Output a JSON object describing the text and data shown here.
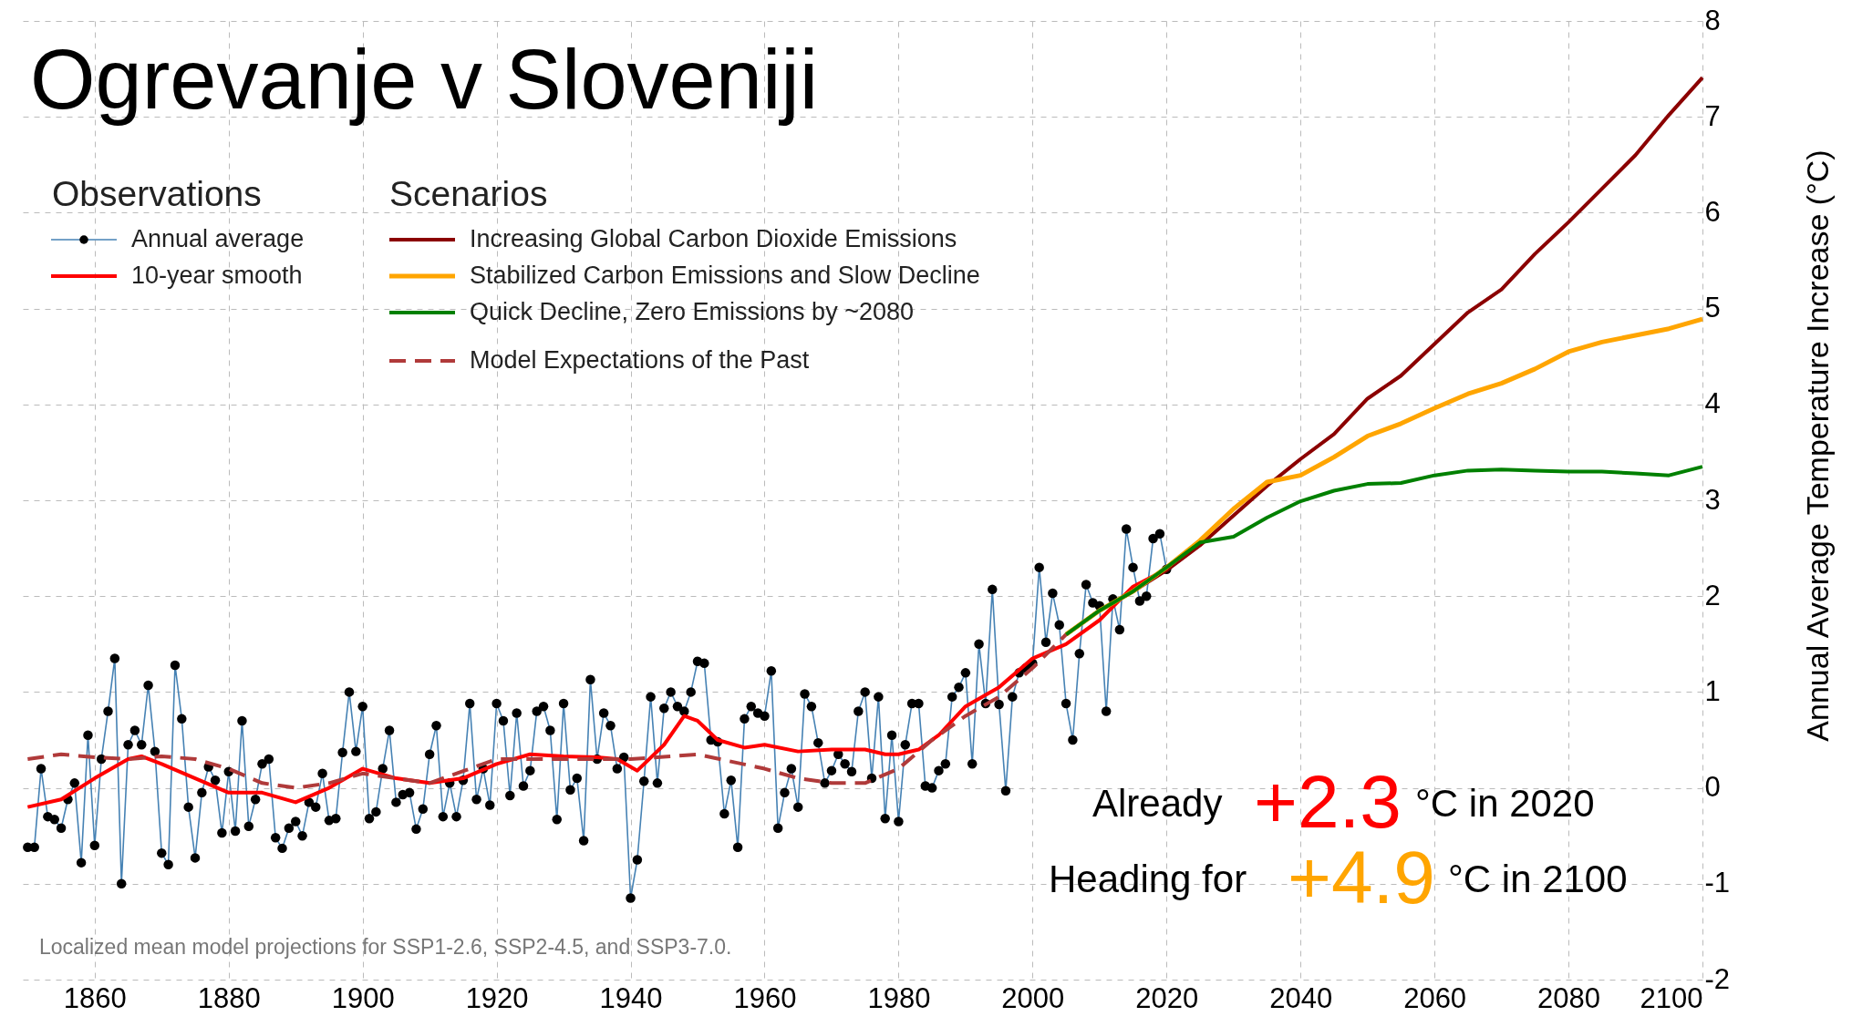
{
  "chart_data": {
    "type": "line",
    "title": "Ogrevanje v Sloveniji",
    "ylabel": "Annual Average Temperature Increase (°C)",
    "xlim": [
      1849,
      2100
    ],
    "xticks": [
      1860,
      1880,
      1900,
      1920,
      1940,
      1960,
      1980,
      2000,
      2020,
      2040,
      2060,
      2080,
      2100
    ],
    "ylim": [
      -2,
      8
    ],
    "yticks": [
      -2,
      -1,
      0,
      1,
      2,
      3,
      4,
      5,
      6,
      7,
      8
    ],
    "grid": true,
    "legend": "top left",
    "annotations": [
      "Observations",
      "Scenarios",
      "Already",
      "+2.3",
      "°C in 2020",
      "Heading for",
      "+4.9",
      "°C in 2100",
      "Localized mean model projections for SSP1-2.6, SSP2-4.5, and SSP3-7.0."
    ],
    "series": [
      {
        "name": "Annual average",
        "color": "#4682b4",
        "marker": "circle",
        "x": [
          1850,
          1851,
          1852,
          1853,
          1854,
          1855,
          1856,
          1857,
          1858,
          1859,
          1860,
          1861,
          1862,
          1863,
          1864,
          1865,
          1866,
          1867,
          1868,
          1869,
          1870,
          1871,
          1872,
          1873,
          1874,
          1875,
          1876,
          1877,
          1878,
          1879,
          1880,
          1881,
          1882,
          1883,
          1884,
          1885,
          1886,
          1887,
          1888,
          1889,
          1890,
          1891,
          1892,
          1893,
          1894,
          1895,
          1896,
          1897,
          1898,
          1899,
          1900,
          1901,
          1902,
          1903,
          1904,
          1905,
          1906,
          1907,
          1908,
          1909,
          1910,
          1911,
          1912,
          1913,
          1914,
          1915,
          1916,
          1917,
          1918,
          1919,
          1920,
          1921,
          1922,
          1923,
          1924,
          1925,
          1926,
          1927,
          1928,
          1929,
          1930,
          1931,
          1932,
          1933,
          1934,
          1935,
          1936,
          1937,
          1938,
          1939,
          1940,
          1941,
          1942,
          1943,
          1944,
          1945,
          1946,
          1947,
          1948,
          1949,
          1950,
          1951,
          1952,
          1953,
          1954,
          1955,
          1956,
          1957,
          1958,
          1959,
          1960,
          1961,
          1962,
          1963,
          1964,
          1965,
          1966,
          1967,
          1968,
          1969,
          1970,
          1971,
          1972,
          1973,
          1974,
          1975,
          1976,
          1977,
          1978,
          1979,
          1980,
          1981,
          1982,
          1983,
          1984,
          1985,
          1986,
          1987,
          1988,
          1989,
          1990,
          1991,
          1992,
          1993,
          1994,
          1995,
          1996,
          1997,
          1998,
          1999,
          2000,
          2001,
          2002,
          2003,
          2004,
          2005,
          2006,
          2007,
          2008,
          2009,
          2010,
          2011,
          2012,
          2013,
          2014,
          2015,
          2016,
          2017,
          2018,
          2019,
          2020
        ],
        "values": [
          -0.62,
          -0.62,
          0.2,
          -0.3,
          -0.33,
          -0.42,
          -0.12,
          0.05,
          -0.78,
          0.55,
          -0.6,
          0.3,
          0.8,
          1.35,
          -1.0,
          0.45,
          0.6,
          0.45,
          1.07,
          0.38,
          -0.68,
          -0.8,
          1.28,
          0.72,
          -0.2,
          -0.73,
          -0.05,
          0.22,
          0.08,
          -0.47,
          0.17,
          -0.45,
          0.7,
          -0.4,
          -0.12,
          0.25,
          0.3,
          -0.52,
          -0.63,
          -0.42,
          -0.35,
          -0.5,
          -0.15,
          -0.2,
          0.15,
          -0.34,
          -0.32,
          0.37,
          1.0,
          0.38,
          0.85,
          -0.32,
          -0.25,
          0.2,
          0.6,
          -0.15,
          -0.07,
          -0.05,
          -0.43,
          -0.22,
          0.35,
          0.65,
          -0.3,
          0.05,
          -0.3,
          0.08,
          0.88,
          -0.12,
          0.2,
          -0.18,
          0.88,
          0.7,
          -0.08,
          0.78,
          0.02,
          0.18,
          0.8,
          0.85,
          0.6,
          -0.33,
          0.88,
          -0.02,
          0.1,
          -0.55,
          1.13,
          0.3,
          0.78,
          0.65,
          0.2,
          0.32,
          -1.15,
          -0.75,
          0.07,
          0.95,
          0.05,
          0.83,
          1.0,
          0.85,
          0.8,
          1.0,
          1.32,
          1.3,
          0.5,
          0.48,
          -0.27,
          0.08,
          -0.62,
          0.72,
          0.85,
          0.78,
          0.75,
          1.22,
          -0.42,
          -0.05,
          0.2,
          -0.2,
          0.98,
          0.85,
          0.47,
          0.05,
          0.18,
          0.35,
          0.25,
          0.17,
          0.8,
          1.0,
          0.1,
          0.95,
          -0.32,
          0.55,
          -0.35,
          0.45,
          0.88,
          0.88,
          0.02,
          0.0,
          0.18,
          0.25,
          0.95,
          1.05,
          1.2,
          0.25,
          1.5,
          0.88,
          2.07,
          0.87,
          -0.03,
          0.95,
          1.2,
          1.25,
          1.3,
          2.3,
          1.52,
          2.03,
          1.7,
          0.88,
          0.5,
          1.4,
          2.12,
          1.93,
          1.9,
          0.8,
          1.97,
          1.65,
          2.7,
          2.3,
          1.95,
          2.0,
          2.6,
          2.65,
          2.28
        ]
      },
      {
        "name": "10-year smooth",
        "color": "#ff0000",
        "x": [
          1850,
          1855,
          1860,
          1865,
          1867,
          1870,
          1875,
          1880,
          1885,
          1890,
          1895,
          1900,
          1905,
          1910,
          1915,
          1920,
          1925,
          1930,
          1935,
          1938,
          1941,
          1945,
          1948,
          1950,
          1953,
          1957,
          1960,
          1965,
          1970,
          1975,
          1978,
          1980,
          1983,
          1986,
          1990,
          1995,
          2000,
          2005,
          2010,
          2015,
          2020
        ],
        "values": [
          -0.2,
          -0.12,
          0.1,
          0.3,
          0.33,
          0.25,
          0.1,
          -0.05,
          -0.05,
          -0.15,
          0.0,
          0.2,
          0.1,
          0.05,
          0.1,
          0.25,
          0.35,
          0.33,
          0.32,
          0.3,
          0.18,
          0.45,
          0.75,
          0.7,
          0.5,
          0.42,
          0.45,
          0.38,
          0.4,
          0.4,
          0.35,
          0.35,
          0.4,
          0.55,
          0.85,
          1.05,
          1.35,
          1.5,
          1.75,
          2.1,
          2.28
        ]
      },
      {
        "name": "Increasing Global Carbon Dioxide Emissions",
        "color": "#8b0000",
        "x": [
          2005,
          2010,
          2015,
          2020,
          2025,
          2030,
          2035,
          2040,
          2045,
          2050,
          2055,
          2060,
          2065,
          2070,
          2075,
          2080,
          2085,
          2090,
          2095,
          2100
        ],
        "values": [
          1.6,
          1.85,
          2.05,
          2.27,
          2.53,
          2.84,
          3.15,
          3.43,
          3.69,
          4.06,
          4.3,
          4.63,
          4.96,
          5.2,
          5.57,
          5.9,
          6.25,
          6.6,
          7.02,
          7.41
        ]
      },
      {
        "name": "Stabilized Carbon Emissions and Slow Decline",
        "color": "#ffa500",
        "x": [
          2005,
          2010,
          2015,
          2020,
          2025,
          2030,
          2035,
          2040,
          2045,
          2050,
          2055,
          2060,
          2065,
          2070,
          2075,
          2080,
          2085,
          2090,
          2095,
          2100
        ],
        "values": [
          1.6,
          1.85,
          2.05,
          2.3,
          2.58,
          2.91,
          3.19,
          3.26,
          3.45,
          3.67,
          3.8,
          3.96,
          4.11,
          4.22,
          4.37,
          4.55,
          4.65,
          4.72,
          4.79,
          4.89
        ]
      },
      {
        "name": "Quick Decline, Zero Emissions by ~2080",
        "color": "#008000",
        "x": [
          2005,
          2010,
          2015,
          2020,
          2025,
          2030,
          2035,
          2040,
          2045,
          2050,
          2055,
          2060,
          2065,
          2070,
          2075,
          2080,
          2085,
          2090,
          2095,
          2100
        ],
        "values": [
          1.6,
          1.85,
          2.05,
          2.3,
          2.56,
          2.62,
          2.82,
          2.99,
          3.1,
          3.17,
          3.18,
          3.26,
          3.31,
          3.32,
          3.31,
          3.3,
          3.3,
          3.28,
          3.26,
          3.35
        ]
      },
      {
        "name": "Model Expectations of the Past",
        "color": "#b03a3a",
        "line_style": "dashed",
        "x": [
          1850,
          1855,
          1860,
          1865,
          1870,
          1875,
          1880,
          1885,
          1890,
          1895,
          1900,
          1905,
          1910,
          1920,
          1930,
          1940,
          1950,
          1960,
          1965,
          1970,
          1975,
          1980,
          1985,
          1990,
          1995,
          2000,
          2005
        ],
        "values": [
          0.3,
          0.35,
          0.32,
          0.3,
          0.33,
          0.3,
          0.2,
          0.05,
          0.0,
          0.05,
          0.15,
          0.1,
          0.05,
          0.3,
          0.3,
          0.3,
          0.35,
          0.2,
          0.1,
          0.05,
          0.05,
          0.2,
          0.5,
          0.75,
          0.95,
          1.25,
          1.6
        ]
      }
    ]
  }
}
